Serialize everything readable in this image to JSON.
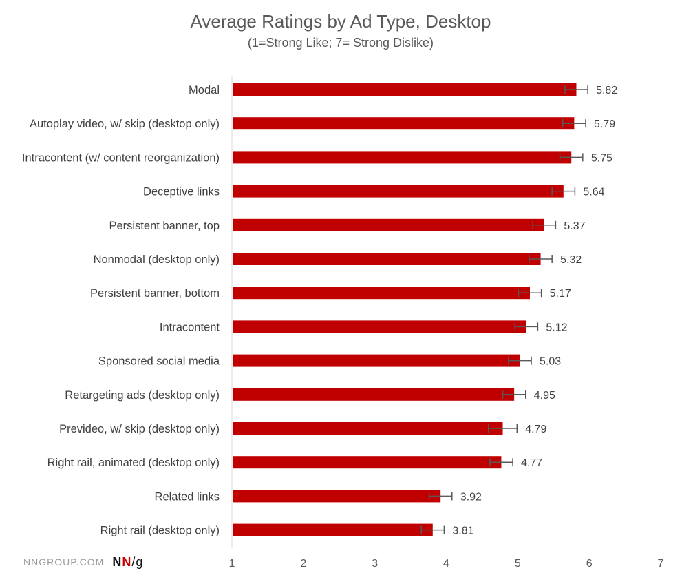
{
  "chart_data": {
    "type": "bar",
    "orientation": "horizontal",
    "title": "Average Ratings by Ad Type, Desktop",
    "subtitle": "(1=Strong Like; 7= Strong Dislike)",
    "categories": [
      "Modal",
      "Autoplay video, w/ skip (desktop only)",
      "Intracontent (w/ content reorganization)",
      "Deceptive links",
      "Persistent banner, top",
      "Nonmodal (desktop only)",
      "Persistent banner, bottom",
      "Intracontent",
      "Sponsored social media",
      "Retargeting ads (desktop only)",
      "Prevideo, w/ skip (desktop only)",
      "Right rail, animated (desktop only)",
      "Related links",
      "Right rail (desktop only)"
    ],
    "values": [
      5.82,
      5.79,
      5.75,
      5.64,
      5.37,
      5.32,
      5.17,
      5.12,
      5.03,
      4.95,
      4.79,
      4.77,
      3.92,
      3.81
    ],
    "value_labels": [
      "5.82",
      "5.79",
      "5.75",
      "5.64",
      "5.37",
      "5.32",
      "5.17",
      "5.12",
      "5.03",
      "4.95",
      "4.79",
      "4.77",
      "3.92",
      "3.81"
    ],
    "error_margin": [
      0.16,
      0.16,
      0.16,
      0.16,
      0.16,
      0.16,
      0.16,
      0.16,
      0.16,
      0.16,
      0.2,
      0.16,
      0.16,
      0.16
    ],
    "xlim": [
      1,
      7
    ],
    "xticks": [
      "1",
      "2",
      "3",
      "4",
      "5",
      "6",
      "7"
    ],
    "xlabel": "",
    "ylabel": "",
    "grid": false,
    "bar_color": "#c00000",
    "error_bar_color": "#595959"
  },
  "brand": {
    "site": "NNGROUP.COM",
    "logo_n1": "N",
    "logo_n2": "N",
    "logo_g": "/g"
  }
}
